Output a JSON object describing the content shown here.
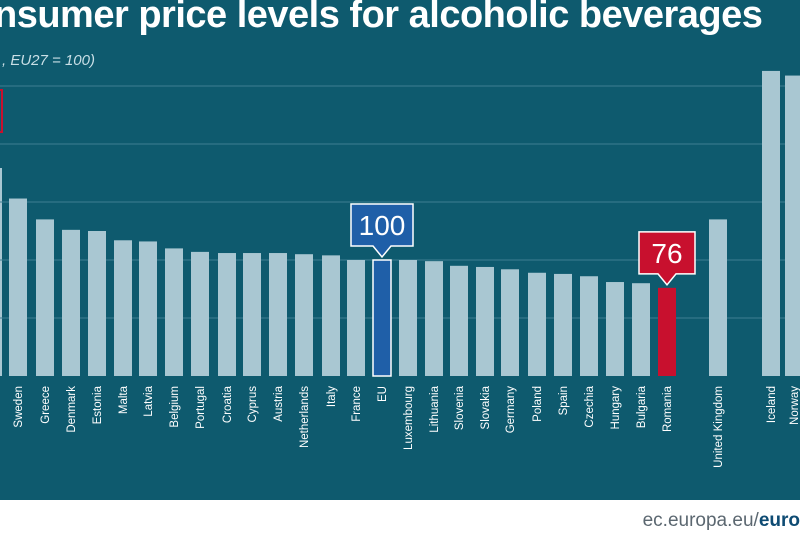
{
  "header": {
    "title": "nsumer price levels for alcoholic beverages",
    "subtitle": ", EU27 = 100)"
  },
  "footer": {
    "domain": "ec.europa.eu/",
    "brand": "euro"
  },
  "colors": {
    "background": "#0e5a6e",
    "bar": "#a9c7d2",
    "eu": "#1f5fa8",
    "highlight": "#c8102e",
    "gridline": "#3f7f91"
  },
  "chart_data": {
    "type": "bar",
    "title": "nsumer price levels for alcoholic beverages",
    "subtitle": ", EU27 = 100)",
    "xlabel": "",
    "ylabel": "",
    "ylim": [
      0,
      260
    ],
    "grid": true,
    "categories": [
      "Sweden",
      "Greece",
      "Denmark",
      "Estonia",
      "Malta",
      "Latvia",
      "Belgium",
      "Portugal",
      "Croatia",
      "Cyprus",
      "Austria",
      "Netherlands",
      "Italy",
      "France",
      "EU",
      "Luxembourg",
      "Lithuania",
      "Slovenia",
      "Slovakia",
      "Germany",
      "Poland",
      "Spain",
      "Czechia",
      "Hungary",
      "Bulgaria",
      "Romania",
      "United Kingdom",
      "Iceland",
      "Norway"
    ],
    "values": [
      153,
      135,
      126,
      125,
      117,
      116,
      110,
      107,
      106,
      106,
      106,
      105,
      104,
      100,
      100,
      100,
      99,
      95,
      94,
      92,
      89,
      88,
      86,
      81,
      80,
      76,
      135,
      263,
      259
    ],
    "highlights": [
      {
        "category": "EU",
        "label": "100"
      },
      {
        "category": "Romania",
        "label": "76"
      }
    ]
  }
}
